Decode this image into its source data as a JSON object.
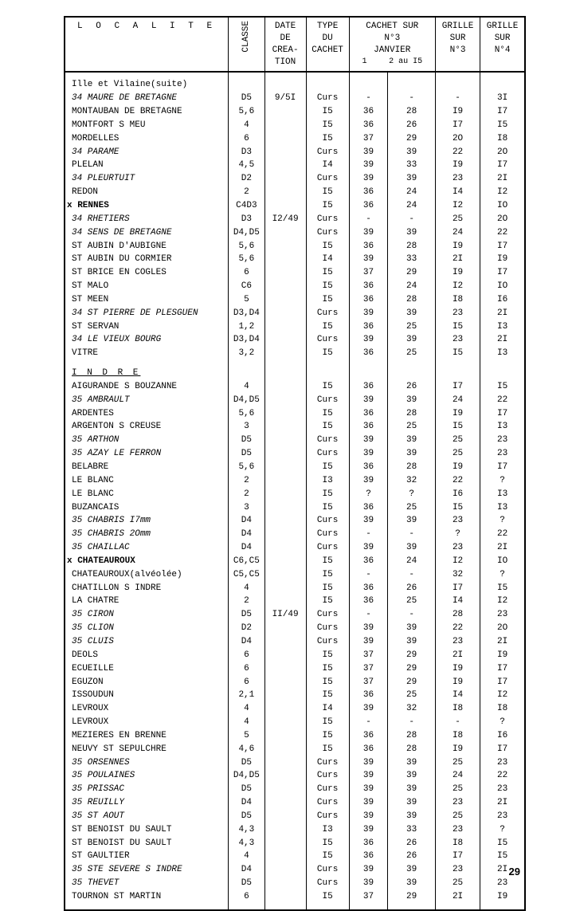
{
  "page_number": "29",
  "colors": {
    "text": "#000000",
    "bg": "#ffffff",
    "border": "#000000"
  },
  "font": {
    "family": "Courier New",
    "size_pt": 11
  },
  "columns": {
    "localite": "L O C A L I T E",
    "classe": "CLASSE",
    "date": "DATE\nDE\nCREA-\nTION",
    "type": "TYPE\nDU\nCACHET",
    "cachet": "CACHET SUR\nN°3\nJANVIER",
    "cachet_sub1": "1",
    "cachet_sub2": "2 au I5",
    "grille3": "GRILLE\nSUR\nN°3",
    "grille4": "GRILLE\nSUR\nN°4"
  },
  "section1": "Ille et Vilaine(suite)",
  "section2": "I N D R E",
  "rows1": [
    {
      "loc": "34 MAURE DE BRETAGNE",
      "cls": "D5",
      "date": "9/5I",
      "type": "Curs",
      "c1": "-",
      "c2": "-",
      "g3": "-",
      "g4": "3I",
      "style": "italic"
    },
    {
      "loc": "MONTAUBAN DE BRETAGNE",
      "cls": "5,6",
      "date": "",
      "type": "I5",
      "c1": "36",
      "c2": "28",
      "g3": "I9",
      "g4": "I7"
    },
    {
      "loc": "MONTFORT S MEU",
      "cls": "4",
      "date": "",
      "type": "I5",
      "c1": "36",
      "c2": "26",
      "g3": "I7",
      "g4": "I5"
    },
    {
      "loc": "MORDELLES",
      "cls": "6",
      "date": "",
      "type": "I5",
      "c1": "37",
      "c2": "29",
      "g3": "2O",
      "g4": "I8"
    },
    {
      "loc": "34 PARAME",
      "cls": "D3",
      "date": "",
      "type": "Curs",
      "c1": "39",
      "c2": "39",
      "g3": "22",
      "g4": "2O",
      "style": "italic"
    },
    {
      "loc": "PLELAN",
      "cls": "4,5",
      "date": "",
      "type": "I4",
      "c1": "39",
      "c2": "33",
      "g3": "I9",
      "g4": "I7"
    },
    {
      "loc": "34 PLEURTUIT",
      "cls": "D2",
      "date": "",
      "type": "Curs",
      "c1": "39",
      "c2": "39",
      "g3": "23",
      "g4": "2I",
      "style": "italic"
    },
    {
      "loc": "REDON",
      "cls": "2",
      "date": "",
      "type": "I5",
      "c1": "36",
      "c2": "24",
      "g3": "I4",
      "g4": "I2"
    },
    {
      "loc": "RENNES",
      "cls": "C4D3",
      "date": "",
      "type": "I5",
      "c1": "36",
      "c2": "24",
      "g3": "I2",
      "g4": "IO",
      "style": "bold",
      "marker": "x"
    },
    {
      "loc": "34 RHETIERS",
      "cls": "D3",
      "date": "I2/49",
      "type": "Curs",
      "c1": "-",
      "c2": "-",
      "g3": "25",
      "g4": "2O",
      "style": "italic"
    },
    {
      "loc": "34 SENS DE BRETAGNE",
      "cls": "D4,D5",
      "date": "",
      "type": "Curs",
      "c1": "39",
      "c2": "39",
      "g3": "24",
      "g4": "22",
      "style": "italic"
    },
    {
      "loc": "ST AUBIN D'AUBIGNE",
      "cls": "5,6",
      "date": "",
      "type": "I5",
      "c1": "36",
      "c2": "28",
      "g3": "I9",
      "g4": "I7"
    },
    {
      "loc": "ST AUBIN DU CORMIER",
      "cls": "5,6",
      "date": "",
      "type": "I4",
      "c1": "39",
      "c2": "33",
      "g3": "2I",
      "g4": "I9"
    },
    {
      "loc": "ST BRICE EN COGLES",
      "cls": "6",
      "date": "",
      "type": "I5",
      "c1": "37",
      "c2": "29",
      "g3": "I9",
      "g4": "I7"
    },
    {
      "loc": "ST MALO",
      "cls": "C6",
      "date": "",
      "type": "I5",
      "c1": "36",
      "c2": "24",
      "g3": "I2",
      "g4": "IO"
    },
    {
      "loc": "ST MEEN",
      "cls": "5",
      "date": "",
      "type": "I5",
      "c1": "36",
      "c2": "28",
      "g3": "I8",
      "g4": "I6"
    },
    {
      "loc": "34 ST PIERRE DE PLESGUEN",
      "cls": "D3,D4",
      "date": "",
      "type": "Curs",
      "c1": "39",
      "c2": "39",
      "g3": "23",
      "g4": "2I",
      "style": "italic"
    },
    {
      "loc": "ST SERVAN",
      "cls": "1,2",
      "date": "",
      "type": "I5",
      "c1": "36",
      "c2": "25",
      "g3": "I5",
      "g4": "I3"
    },
    {
      "loc": "34 LE VIEUX BOURG",
      "cls": "D3,D4",
      "date": "",
      "type": "Curs",
      "c1": "39",
      "c2": "39",
      "g3": "23",
      "g4": "2I",
      "style": "italic"
    },
    {
      "loc": "VITRE",
      "cls": "3,2",
      "date": "",
      "type": "I5",
      "c1": "36",
      "c2": "25",
      "g3": "I5",
      "g4": "I3"
    }
  ],
  "rows2": [
    {
      "loc": "AIGURANDE S BOUZANNE",
      "cls": "4",
      "date": "",
      "type": "I5",
      "c1": "36",
      "c2": "26",
      "g3": "I7",
      "g4": "I5"
    },
    {
      "loc": "35 AMBRAULT",
      "cls": "D4,D5",
      "date": "",
      "type": "Curs",
      "c1": "39",
      "c2": "39",
      "g3": "24",
      "g4": "22",
      "style": "italic"
    },
    {
      "loc": "ARDENTES",
      "cls": "5,6",
      "date": "",
      "type": "I5",
      "c1": "36",
      "c2": "28",
      "g3": "I9",
      "g4": "I7"
    },
    {
      "loc": "ARGENTON S CREUSE",
      "cls": "3",
      "date": "",
      "type": "I5",
      "c1": "36",
      "c2": "25",
      "g3": "I5",
      "g4": "I3"
    },
    {
      "loc": "35 ARTHON",
      "cls": "D5",
      "date": "",
      "type": "Curs",
      "c1": "39",
      "c2": "39",
      "g3": "25",
      "g4": "23",
      "style": "italic"
    },
    {
      "loc": "35 AZAY LE FERRON",
      "cls": "D5",
      "date": "",
      "type": "Curs",
      "c1": "39",
      "c2": "39",
      "g3": "25",
      "g4": "23",
      "style": "italic"
    },
    {
      "loc": "BELABRE",
      "cls": "5,6",
      "date": "",
      "type": "I5",
      "c1": "36",
      "c2": "28",
      "g3": "I9",
      "g4": "I7"
    },
    {
      "loc": "LE BLANC",
      "cls": "2",
      "date": "",
      "type": "I3",
      "c1": "39",
      "c2": "32",
      "g3": "22",
      "g4": "?"
    },
    {
      "loc": "LE BLANC",
      "cls": "2",
      "date": "",
      "type": "I5",
      "c1": "?",
      "c2": "?",
      "g3": "I6",
      "g4": "I3"
    },
    {
      "loc": "BUZANCAIS",
      "cls": "3",
      "date": "",
      "type": "I5",
      "c1": "36",
      "c2": "25",
      "g3": "I5",
      "g4": "I3"
    },
    {
      "loc": "35 CHABRIS      I7mm",
      "cls": "D4",
      "date": "",
      "type": "Curs",
      "c1": "39",
      "c2": "39",
      "g3": "23",
      "g4": "?",
      "style": "italic"
    },
    {
      "loc": "35 CHABRIS      2Omm",
      "cls": "D4",
      "date": "",
      "type": "Curs",
      "c1": "-",
      "c2": "-",
      "g3": "?",
      "g4": "22",
      "style": "italic"
    },
    {
      "loc": "35 CHAILLAC",
      "cls": "D4",
      "date": "",
      "type": "Curs",
      "c1": "39",
      "c2": "39",
      "g3": "23",
      "g4": "2I",
      "style": "italic"
    },
    {
      "loc": "CHATEAUROUX",
      "cls": "C6,C5",
      "date": "",
      "type": "I5",
      "c1": "36",
      "c2": "24",
      "g3": "I2",
      "g4": "IO",
      "style": "bold",
      "marker": "x"
    },
    {
      "loc": "CHATEAUROUX(alvéolée)",
      "cls": "C5,C5",
      "date": "",
      "type": "I5",
      "c1": "-",
      "c2": "-",
      "g3": "32",
      "g4": "?"
    },
    {
      "loc": "CHATILLON S INDRE",
      "cls": "4",
      "date": "",
      "type": "I5",
      "c1": "36",
      "c2": "26",
      "g3": "I7",
      "g4": "I5"
    },
    {
      "loc": "LA CHATRE",
      "cls": "2",
      "date": "",
      "type": "I5",
      "c1": "36",
      "c2": "25",
      "g3": "I4",
      "g4": "I2"
    },
    {
      "loc": "35 CIRON",
      "cls": "D5",
      "date": "II/49",
      "type": "Curs",
      "c1": "-",
      "c2": "-",
      "g3": "28",
      "g4": "23",
      "style": "italic"
    },
    {
      "loc": "35 CLION",
      "cls": "D2",
      "date": "",
      "type": "Curs",
      "c1": "39",
      "c2": "39",
      "g3": "22",
      "g4": "2O",
      "style": "italic"
    },
    {
      "loc": "35 CLUIS",
      "cls": "D4",
      "date": "",
      "type": "Curs",
      "c1": "39",
      "c2": "39",
      "g3": "23",
      "g4": "2I",
      "style": "italic"
    },
    {
      "loc": "DEOLS",
      "cls": "6",
      "date": "",
      "type": "I5",
      "c1": "37",
      "c2": "29",
      "g3": "2I",
      "g4": "I9"
    },
    {
      "loc": "ECUEILLE",
      "cls": "6",
      "date": "",
      "type": "I5",
      "c1": "37",
      "c2": "29",
      "g3": "I9",
      "g4": "I7"
    },
    {
      "loc": "EGUZON",
      "cls": "6",
      "date": "",
      "type": "I5",
      "c1": "37",
      "c2": "29",
      "g3": "I9",
      "g4": "I7"
    },
    {
      "loc": "ISSOUDUN",
      "cls": "2,1",
      "date": "",
      "type": "I5",
      "c1": "36",
      "c2": "25",
      "g3": "I4",
      "g4": "I2"
    },
    {
      "loc": "LEVROUX",
      "cls": "4",
      "date": "",
      "type": "I4",
      "c1": "39",
      "c2": "32",
      "g3": "I8",
      "g4": "I8"
    },
    {
      "loc": "LEVROUX",
      "cls": "4",
      "date": "",
      "type": "I5",
      "c1": "-",
      "c2": "-",
      "g3": "-",
      "g4": "?"
    },
    {
      "loc": "MEZIERES EN BRENNE",
      "cls": "5",
      "date": "",
      "type": "I5",
      "c1": "36",
      "c2": "28",
      "g3": "I8",
      "g4": "I6"
    },
    {
      "loc": "NEUVY ST SEPULCHRE",
      "cls": "4,6",
      "date": "",
      "type": "I5",
      "c1": "36",
      "c2": "28",
      "g3": "I9",
      "g4": "I7"
    },
    {
      "loc": "35 ORSENNES",
      "cls": "D5",
      "date": "",
      "type": "Curs",
      "c1": "39",
      "c2": "39",
      "g3": "25",
      "g4": "23",
      "style": "italic"
    },
    {
      "loc": "35 POULAINES",
      "cls": "D4,D5",
      "date": "",
      "type": "Curs",
      "c1": "39",
      "c2": "39",
      "g3": "24",
      "g4": "22",
      "style": "italic"
    },
    {
      "loc": "35 PRISSAC",
      "cls": "D5",
      "date": "",
      "type": "Curs",
      "c1": "39",
      "c2": "39",
      "g3": "25",
      "g4": "23",
      "style": "italic"
    },
    {
      "loc": "35 REUILLY",
      "cls": "D4",
      "date": "",
      "type": "Curs",
      "c1": "39",
      "c2": "39",
      "g3": "23",
      "g4": "2I",
      "style": "italic"
    },
    {
      "loc": "35 ST AOUT",
      "cls": "D5",
      "date": "",
      "type": "Curs",
      "c1": "39",
      "c2": "39",
      "g3": "25",
      "g4": "23",
      "style": "italic"
    },
    {
      "loc": "ST BENOIST DU SAULT",
      "cls": "4,3",
      "date": "",
      "type": "I3",
      "c1": "39",
      "c2": "33",
      "g3": "23",
      "g4": "?"
    },
    {
      "loc": "ST BENOIST DU SAULT",
      "cls": "4,3",
      "date": "",
      "type": "I5",
      "c1": "36",
      "c2": "26",
      "g3": "I8",
      "g4": "I5"
    },
    {
      "loc": "ST GAULTIER",
      "cls": "4",
      "date": "",
      "type": "I5",
      "c1": "36",
      "c2": "26",
      "g3": "I7",
      "g4": "I5"
    },
    {
      "loc": "35 STE SEVERE S INDRE",
      "cls": "D4",
      "date": "",
      "type": "Curs",
      "c1": "39",
      "c2": "39",
      "g3": "23",
      "g4": "2I",
      "style": "italic"
    },
    {
      "loc": "35 THEVET",
      "cls": "D5",
      "date": "",
      "type": "Curs",
      "c1": "39",
      "c2": "39",
      "g3": "25",
      "g4": "23",
      "style": "italic"
    },
    {
      "loc": "TOURNON ST MARTIN",
      "cls": "6",
      "date": "",
      "type": "I5",
      "c1": "37",
      "c2": "29",
      "g3": "2I",
      "g4": "I9"
    }
  ]
}
